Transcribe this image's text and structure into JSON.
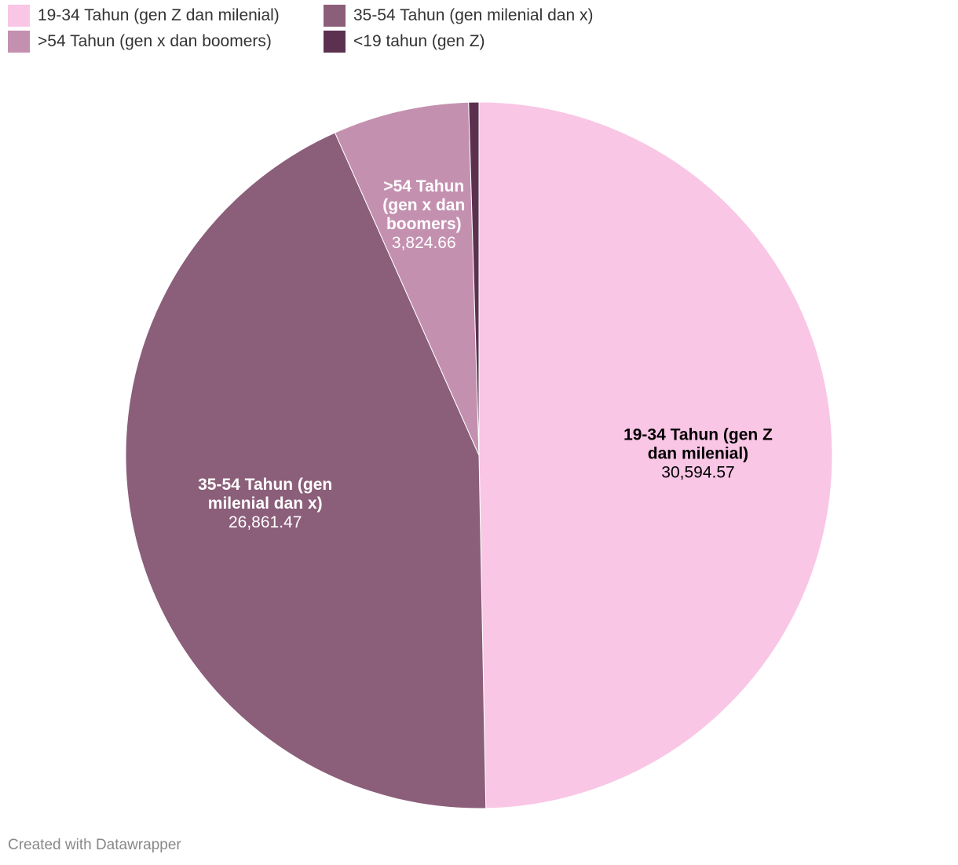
{
  "chart_data": {
    "type": "pie",
    "title": "",
    "legend_position": "top-left",
    "categories": [
      "19-34 Tahun (gen Z dan milenial)",
      "35-54 Tahun (gen milenial dan x)",
      ">54 Tahun (gen x dan boomers)",
      "<19 tahun (gen Z)"
    ],
    "values": [
      30594.57,
      26861.47,
      3824.66,
      290
    ],
    "value_labels": [
      "30,594.57",
      "26,861.47",
      "3,824.66",
      ""
    ],
    "slice_label_lines": [
      [
        "19-34 Tahun (gen Z",
        "dan milenial)"
      ],
      [
        "35-54 Tahun (gen",
        "milenial dan x)"
      ],
      [
        ">54 Tahun",
        "(gen x dan",
        "boomers)"
      ],
      []
    ],
    "colors": [
      "#f9c6e5",
      "#8b5e79",
      "#c490b0",
      "#5c3150"
    ],
    "label_colors": [
      "#000000",
      "#ffffff",
      "#ffffff",
      "#ffffff"
    ]
  },
  "footer": {
    "credit": "Created with Datawrapper"
  }
}
